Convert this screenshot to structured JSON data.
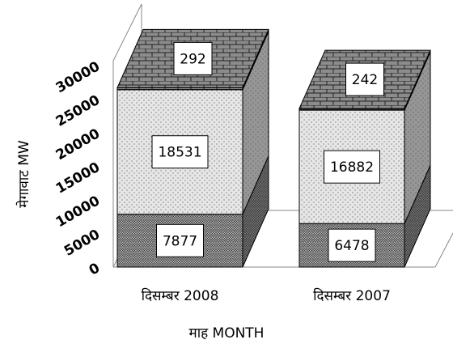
{
  "chart_data": {
    "type": "stacked-bar-3d",
    "x_label": "माह MONTH",
    "y_label": "मेगावाट MW",
    "categories": [
      "दिसम्बर 2008",
      "दिसम्बर 2007"
    ],
    "series": [
      {
        "color": "#bdbdbd",
        "values": [
          7877,
          6478
        ]
      },
      {
        "color": "#e6e6e6",
        "values": [
          18531,
          16882
        ]
      },
      {
        "color": "#8c8c8c",
        "values": [
          292,
          242
        ]
      }
    ],
    "ylim": [
      0,
      30000
    ],
    "yticks": [
      0,
      5000,
      10000,
      15000,
      20000,
      25000,
      30000
    ]
  }
}
